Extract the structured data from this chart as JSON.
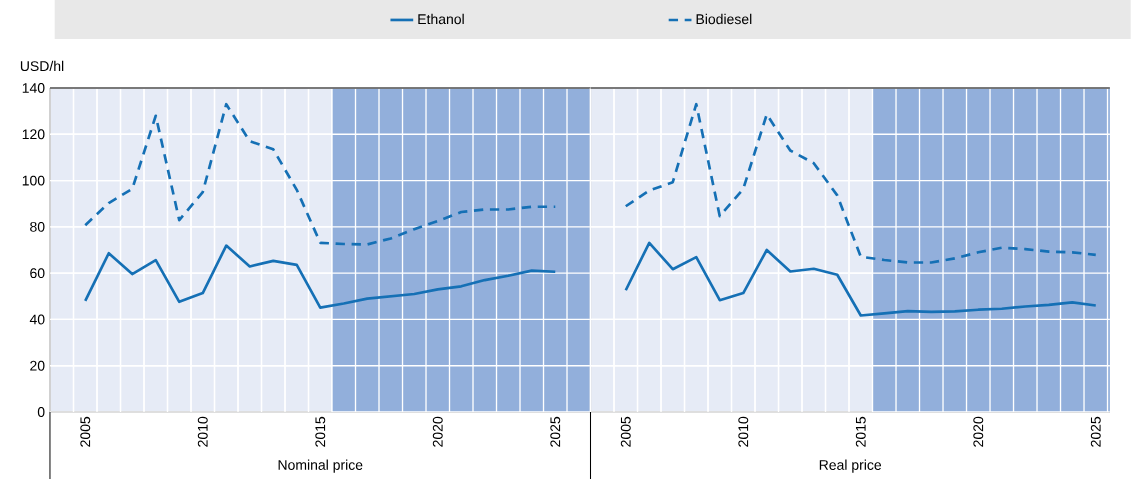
{
  "chart_data": [
    {
      "type": "line",
      "xlabel": "Nominal price",
      "ylabel": "USD/hl",
      "x": [
        2005,
        2006,
        2007,
        2008,
        2009,
        2010,
        2011,
        2012,
        2013,
        2014,
        2015,
        2016,
        2017,
        2018,
        2019,
        2020,
        2021,
        2022,
        2023,
        2024,
        2025
      ],
      "series": [
        {
          "name": "Ethanol",
          "color": "#1570b5",
          "line_style": "solid",
          "values": [
            48,
            68.6,
            59.6,
            65.6,
            47.6,
            51.4,
            71.9,
            62.9,
            65.3,
            63.6,
            45.1,
            46.9,
            49,
            50,
            51,
            53,
            54.3,
            57,
            58.9,
            61.1,
            60.6
          ]
        },
        {
          "name": "Biodiesel",
          "color": "#1570b5",
          "line_style": "dashed",
          "values": [
            80.7,
            90.3,
            96.4,
            128,
            82.9,
            95,
            133,
            117,
            113.5,
            96,
            73.1,
            72.6,
            72.4,
            75,
            79,
            82.5,
            86.4,
            87.5,
            87.5,
            88.7,
            88.7
          ]
        }
      ],
      "xlim": [
        2003.5,
        2026.5
      ],
      "xticks": [
        2005,
        2010,
        2015,
        2020,
        2025
      ],
      "ylim": [
        0,
        140
      ],
      "yticks": [
        0,
        20,
        40,
        60,
        80,
        100,
        120,
        140
      ],
      "grid": true,
      "legend": "top",
      "bands": [
        {
          "axis": "x",
          "from": 2015.5,
          "to": 2026.5,
          "color": "#92afdb"
        }
      ]
    },
    {
      "type": "line",
      "xlabel": "Real price",
      "x": [
        2005,
        2006,
        2007,
        2008,
        2009,
        2010,
        2011,
        2012,
        2013,
        2014,
        2015,
        2016,
        2017,
        2018,
        2019,
        2020,
        2021,
        2022,
        2023,
        2024,
        2025
      ],
      "series": [
        {
          "color": "#1570b5",
          "line_style": "solid",
          "values": [
            52.6,
            73.1,
            61.7,
            66.9,
            48.3,
            51.4,
            70,
            60.7,
            61.9,
            59.3,
            41.7,
            42.6,
            43.6,
            43.3,
            43.5,
            44.2,
            44.6,
            45.6,
            46.3,
            47.4,
            46
          ]
        },
        {
          "color": "#1570b5",
          "line_style": "dashed",
          "values": [
            88.9,
            95.7,
            99.3,
            133,
            84.6,
            96.4,
            128.6,
            113,
            107.5,
            93.6,
            67.1,
            65.7,
            64.6,
            64.6,
            66.4,
            69,
            71,
            70.4,
            69.3,
            69,
            67.9
          ]
        }
      ],
      "xlim": [
        2003.5,
        2025.6
      ],
      "xticks": [
        2005,
        2010,
        2015,
        2020,
        2025
      ],
      "ylim": [
        0,
        140
      ],
      "yticks": [
        0,
        20,
        40,
        60,
        80,
        100,
        120,
        140
      ],
      "grid": true,
      "tick_labels": "x",
      "bands": [
        {
          "axis": "x",
          "from": 2015.5,
          "to": 2025.6,
          "color": "#92afdb"
        }
      ]
    }
  ]
}
